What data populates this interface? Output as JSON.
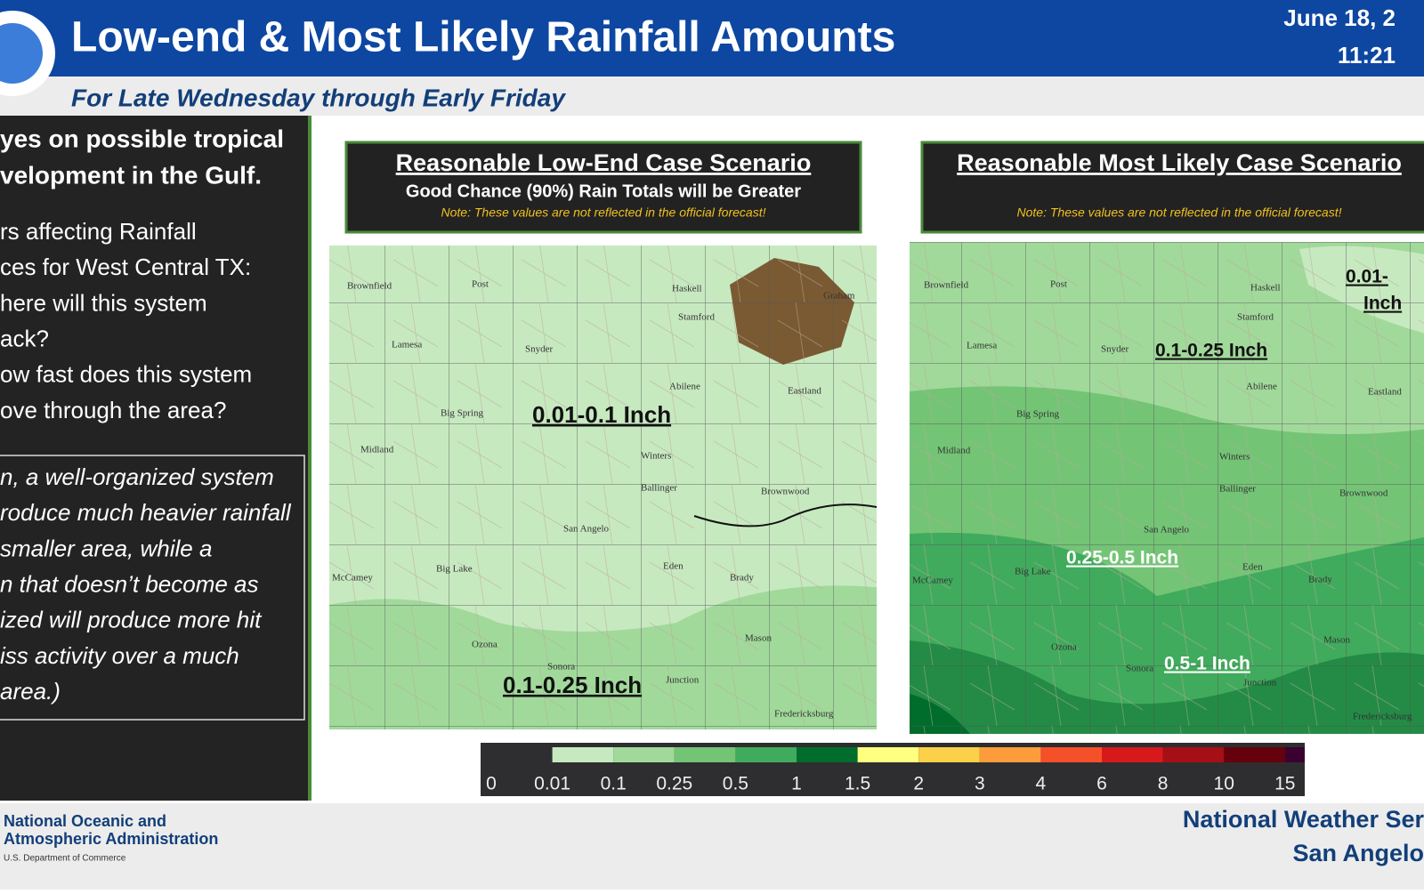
{
  "header": {
    "title": "Low-end & Most Likely Rainfall Amounts",
    "subtitle": "For Late Wednesday through Early Friday",
    "date": "June 18, 2",
    "time": "11:21"
  },
  "left_panel": {
    "heading": [
      "yes on possible tropical",
      "velopment in the Gulf."
    ],
    "factors": [
      "rs affecting Rainfall",
      "ces for West Central TX:",
      "here will this system",
      "ack?",
      "ow fast does this system",
      "ove through the area?"
    ],
    "note": [
      "n, a well-organized system",
      "roduce much heavier rainfall",
      " smaller area, while a",
      "n that doesn’t become as",
      "ized will produce more hit",
      "iss activity over a much",
      "area.)"
    ]
  },
  "maps": [
    {
      "heading": "Reasonable Low-End Case Scenario",
      "subheading": "Good Chance (90%) Rain Totals will be Greater",
      "note": "Note: These values are not reflected in the official forecast!",
      "zones": [
        "0.01-0.1 Inch",
        "0.1-0.25 Inch"
      ],
      "cities": [
        "Brownfield",
        "Post",
        "Haskell",
        "Graham",
        "Stamford",
        "Lamesa",
        "Snyder",
        "Abilene",
        "Eastland",
        "Big Spring",
        "Midland",
        "Winters",
        "Ballinger",
        "Brownwood",
        "San Angelo",
        "Big Lake",
        "McCamey",
        "Eden",
        "Brady",
        "Mason",
        "Ozona",
        "Sonora",
        "Junction",
        "Fredericksburg"
      ]
    },
    {
      "heading": "Reasonable Most Likely Case Scenario",
      "note": "Note: These values are not reflected in the official forecast!",
      "zones": [
        "0.01-",
        "Inch",
        "0.1-0.25 Inch",
        "0.25-0.5 Inch",
        "0.5-1 Inch"
      ],
      "cities": [
        "Brownfield",
        "Post",
        "Haskell",
        "Stamford",
        "Lamesa",
        "Snyder",
        "Abilene",
        "Eastland",
        "Big Spring",
        "Midland",
        "Winters",
        "Ballinger",
        "Brownwood",
        "San Angelo",
        "Big Lake",
        "McCamey",
        "Eden",
        "Brady",
        "Mason",
        "Ozona",
        "Sonora",
        "Junction",
        "Fredericksburg"
      ]
    }
  ],
  "colorbar": {
    "ticks": [
      0,
      0.01,
      0.1,
      0.25,
      0.5,
      1,
      1.5,
      2,
      3,
      4,
      6,
      8,
      10,
      15
    ],
    "colors": [
      "#2e2e30",
      "#c7e9c0",
      "#a1d99b",
      "#74c476",
      "#41ab5d",
      "#006d2c",
      "#ffff80",
      "#fdd049",
      "#fd9c3b",
      "#f4502a",
      "#d7191c",
      "#a50f15",
      "#67000d",
      "#3b0030"
    ]
  },
  "footer": {
    "agency": [
      "National Oceanic and",
      "Atmospheric Administration"
    ],
    "department": "U.S. Department of Commerce",
    "office": [
      "National Weather Ser",
      "San Angelo"
    ]
  }
}
